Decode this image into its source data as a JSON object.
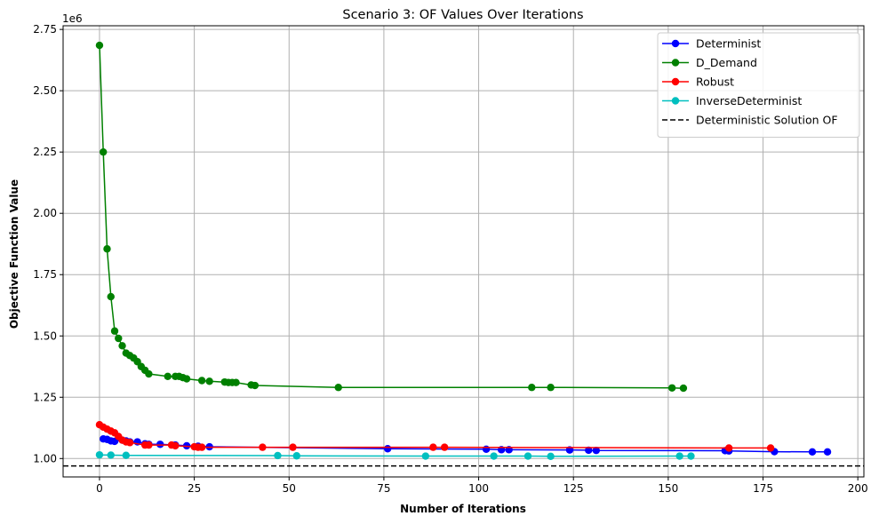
{
  "chart_data": {
    "type": "line",
    "title": "Scenario 3: OF Values Over Iterations",
    "xlabel": "Number of Iterations",
    "ylabel": "Objective Function Value",
    "y_offset_label": "1e6",
    "y_scale": 1000000,
    "xlim": [
      -9.6,
      201.6
    ],
    "ylim": [
      925000,
      2765000
    ],
    "x_ticks": [
      0,
      25,
      50,
      75,
      100,
      125,
      150,
      175,
      200
    ],
    "y_ticks": [
      1.0,
      1.25,
      1.5,
      1.75,
      2.0,
      2.25,
      2.5,
      2.75
    ],
    "y_tick_labels": [
      "1.00",
      "1.25",
      "1.50",
      "1.75",
      "2.00",
      "2.25",
      "2.50",
      "2.75"
    ],
    "grid": true,
    "legend_position": "top-right",
    "series": [
      {
        "name": "Determinist",
        "color": "#0000ff",
        "marker": "circle",
        "points": [
          [
            1,
            1080000
          ],
          [
            2,
            1078000
          ],
          [
            3,
            1072000
          ],
          [
            4,
            1070000
          ],
          [
            6,
            1075000
          ],
          [
            7,
            1072000
          ],
          [
            8,
            1068000
          ],
          [
            10,
            1068000
          ],
          [
            12,
            1060000
          ],
          [
            13,
            1058000
          ],
          [
            16,
            1058000
          ],
          [
            20,
            1055000
          ],
          [
            23,
            1052000
          ],
          [
            26,
            1050000
          ],
          [
            29,
            1048000
          ],
          [
            76,
            1040000
          ],
          [
            102,
            1038000
          ],
          [
            106,
            1036000
          ],
          [
            108,
            1036000
          ],
          [
            124,
            1035000
          ],
          [
            129,
            1034000
          ],
          [
            131,
            1033000
          ],
          [
            165,
            1032000
          ],
          [
            166,
            1031000
          ],
          [
            178,
            1028000
          ],
          [
            188,
            1027000
          ],
          [
            192,
            1027000
          ]
        ]
      },
      {
        "name": "D_Demand",
        "color": "#008000",
        "marker": "circle",
        "points": [
          [
            0,
            2685000
          ],
          [
            1,
            2250000
          ],
          [
            2,
            1855000
          ],
          [
            3,
            1660000
          ],
          [
            4,
            1520000
          ],
          [
            5,
            1490000
          ],
          [
            6,
            1460000
          ],
          [
            7,
            1430000
          ],
          [
            8,
            1420000
          ],
          [
            9,
            1410000
          ],
          [
            10,
            1395000
          ],
          [
            11,
            1375000
          ],
          [
            12,
            1360000
          ],
          [
            13,
            1345000
          ],
          [
            18,
            1335000
          ],
          [
            20,
            1335000
          ],
          [
            21,
            1335000
          ],
          [
            22,
            1330000
          ],
          [
            23,
            1325000
          ],
          [
            27,
            1318000
          ],
          [
            29,
            1315000
          ],
          [
            33,
            1312000
          ],
          [
            34,
            1310000
          ],
          [
            35,
            1310000
          ],
          [
            36,
            1310000
          ],
          [
            40,
            1300000
          ],
          [
            41,
            1298000
          ],
          [
            63,
            1290000
          ],
          [
            114,
            1290000
          ],
          [
            119,
            1290000
          ],
          [
            151,
            1288000
          ],
          [
            154,
            1287000
          ]
        ]
      },
      {
        "name": "Robust",
        "color": "#ff0000",
        "marker": "circle",
        "points": [
          [
            0,
            1138000
          ],
          [
            1,
            1128000
          ],
          [
            2,
            1120000
          ],
          [
            3,
            1112000
          ],
          [
            4,
            1105000
          ],
          [
            5,
            1090000
          ],
          [
            6,
            1075000
          ],
          [
            7,
            1068000
          ],
          [
            8,
            1065000
          ],
          [
            12,
            1055000
          ],
          [
            13,
            1055000
          ],
          [
            19,
            1055000
          ],
          [
            20,
            1052000
          ],
          [
            25,
            1048000
          ],
          [
            26,
            1046000
          ],
          [
            27,
            1046000
          ],
          [
            43,
            1046000
          ],
          [
            51,
            1046000
          ],
          [
            88,
            1046000
          ],
          [
            91,
            1046000
          ],
          [
            166,
            1043000
          ],
          [
            177,
            1043000
          ]
        ]
      },
      {
        "name": "InverseDeterminist",
        "color": "#00bfbf",
        "marker": "circle",
        "points": [
          [
            0,
            1015000
          ],
          [
            3,
            1014000
          ],
          [
            7,
            1013000
          ],
          [
            47,
            1012000
          ],
          [
            52,
            1011000
          ],
          [
            86,
            1010000
          ],
          [
            104,
            1010000
          ],
          [
            113,
            1010000
          ],
          [
            119,
            1009000
          ],
          [
            153,
            1010000
          ],
          [
            156,
            1010000
          ]
        ]
      }
    ],
    "reference_line": {
      "name": "Deterministic Solution OF",
      "color": "#000000",
      "style": "dashed",
      "y": 970000
    }
  }
}
